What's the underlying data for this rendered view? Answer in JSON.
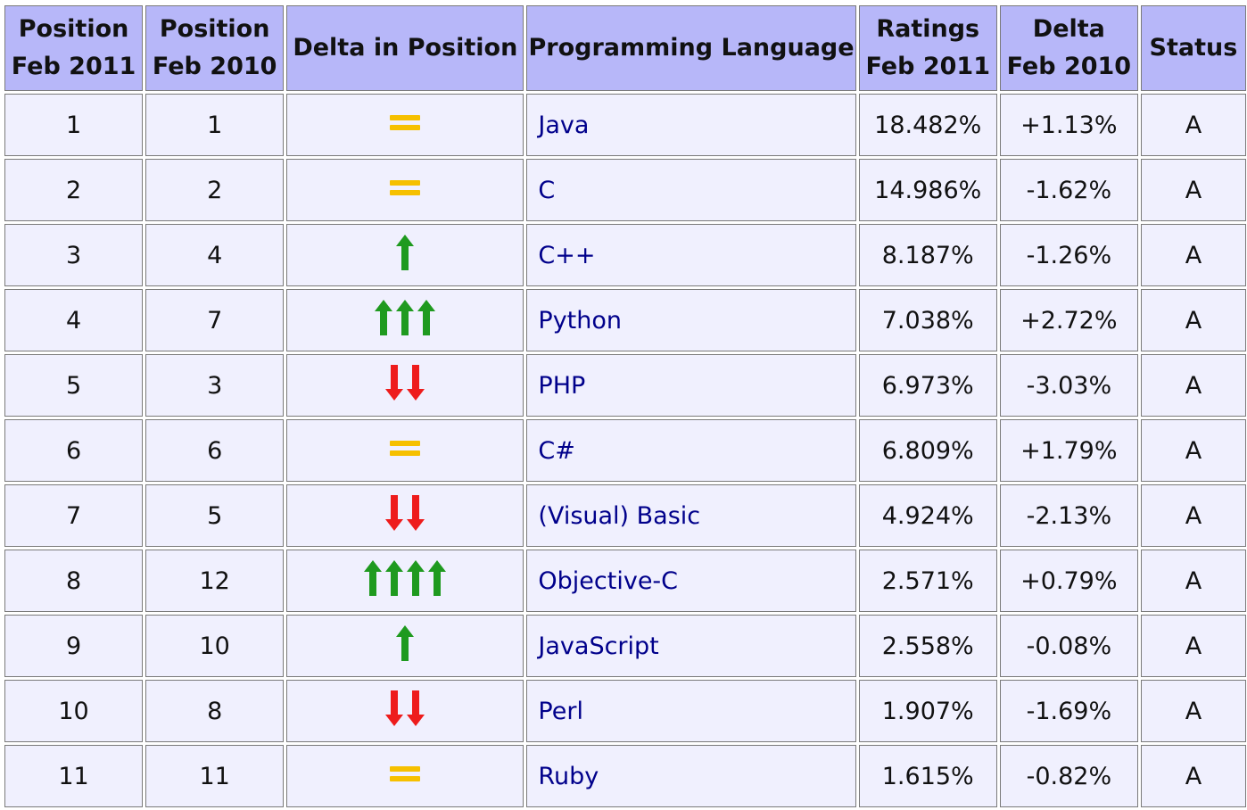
{
  "colors": {
    "header_bg": "#b7b7f9",
    "row_bg": "#f0f0fe",
    "link": "#00008b",
    "up": "#1f9a1f",
    "down": "#ee1c1c",
    "equal": "#f6c000"
  },
  "table": {
    "headers": {
      "pos2011_a": "Position",
      "pos2011_b": "Feb 2011",
      "pos2010_a": "Position",
      "pos2010_b": "Feb 2010",
      "delta_pos": "Delta in Position",
      "language": "Programming Language",
      "ratings_a": "Ratings",
      "ratings_b": "Feb 2011",
      "delta_a": "Delta",
      "delta_b": "Feb 2010",
      "status": "Status"
    },
    "rows": [
      {
        "pos2011": "1",
        "pos2010": "1",
        "delta_icon": "equal-icon",
        "language": "Java",
        "rating": "18.482%",
        "delta": "+1.13%",
        "status": "A"
      },
      {
        "pos2011": "2",
        "pos2010": "2",
        "delta_icon": "equal-icon",
        "language": "C",
        "rating": "14.986%",
        "delta": "-1.62%",
        "status": "A"
      },
      {
        "pos2011": "3",
        "pos2010": "4",
        "delta_icon": "up-arrow-icon",
        "language": "C++",
        "rating": "8.187%",
        "delta": "-1.26%",
        "status": "A"
      },
      {
        "pos2011": "4",
        "pos2010": "7",
        "delta_icon": "up-arrow-icon",
        "language": "Python",
        "rating": "7.038%",
        "delta": "+2.72%",
        "status": "A"
      },
      {
        "pos2011": "5",
        "pos2010": "3",
        "delta_icon": "down-arrow-icon",
        "language": "PHP",
        "rating": "6.973%",
        "delta": "-3.03%",
        "status": "A"
      },
      {
        "pos2011": "6",
        "pos2010": "6",
        "delta_icon": "equal-icon",
        "language": "C#",
        "rating": "6.809%",
        "delta": "+1.79%",
        "status": "A"
      },
      {
        "pos2011": "7",
        "pos2010": "5",
        "delta_icon": "down-arrow-icon",
        "language": "(Visual) Basic",
        "rating": "4.924%",
        "delta": "-2.13%",
        "status": "A"
      },
      {
        "pos2011": "8",
        "pos2010": "12",
        "delta_icon": "up-arrow-icon",
        "language": "Objective-C",
        "rating": "2.571%",
        "delta": "+0.79%",
        "status": "A"
      },
      {
        "pos2011": "9",
        "pos2010": "10",
        "delta_icon": "up-arrow-icon",
        "language": "JavaScript",
        "rating": "2.558%",
        "delta": "-0.08%",
        "status": "A"
      },
      {
        "pos2011": "10",
        "pos2010": "8",
        "delta_icon": "down-arrow-icon",
        "language": "Perl",
        "rating": "1.907%",
        "delta": "-1.69%",
        "status": "A"
      },
      {
        "pos2011": "11",
        "pos2010": "11",
        "delta_icon": "equal-icon",
        "language": "Ruby",
        "rating": "1.615%",
        "delta": "-0.82%",
        "status": "A"
      }
    ]
  }
}
